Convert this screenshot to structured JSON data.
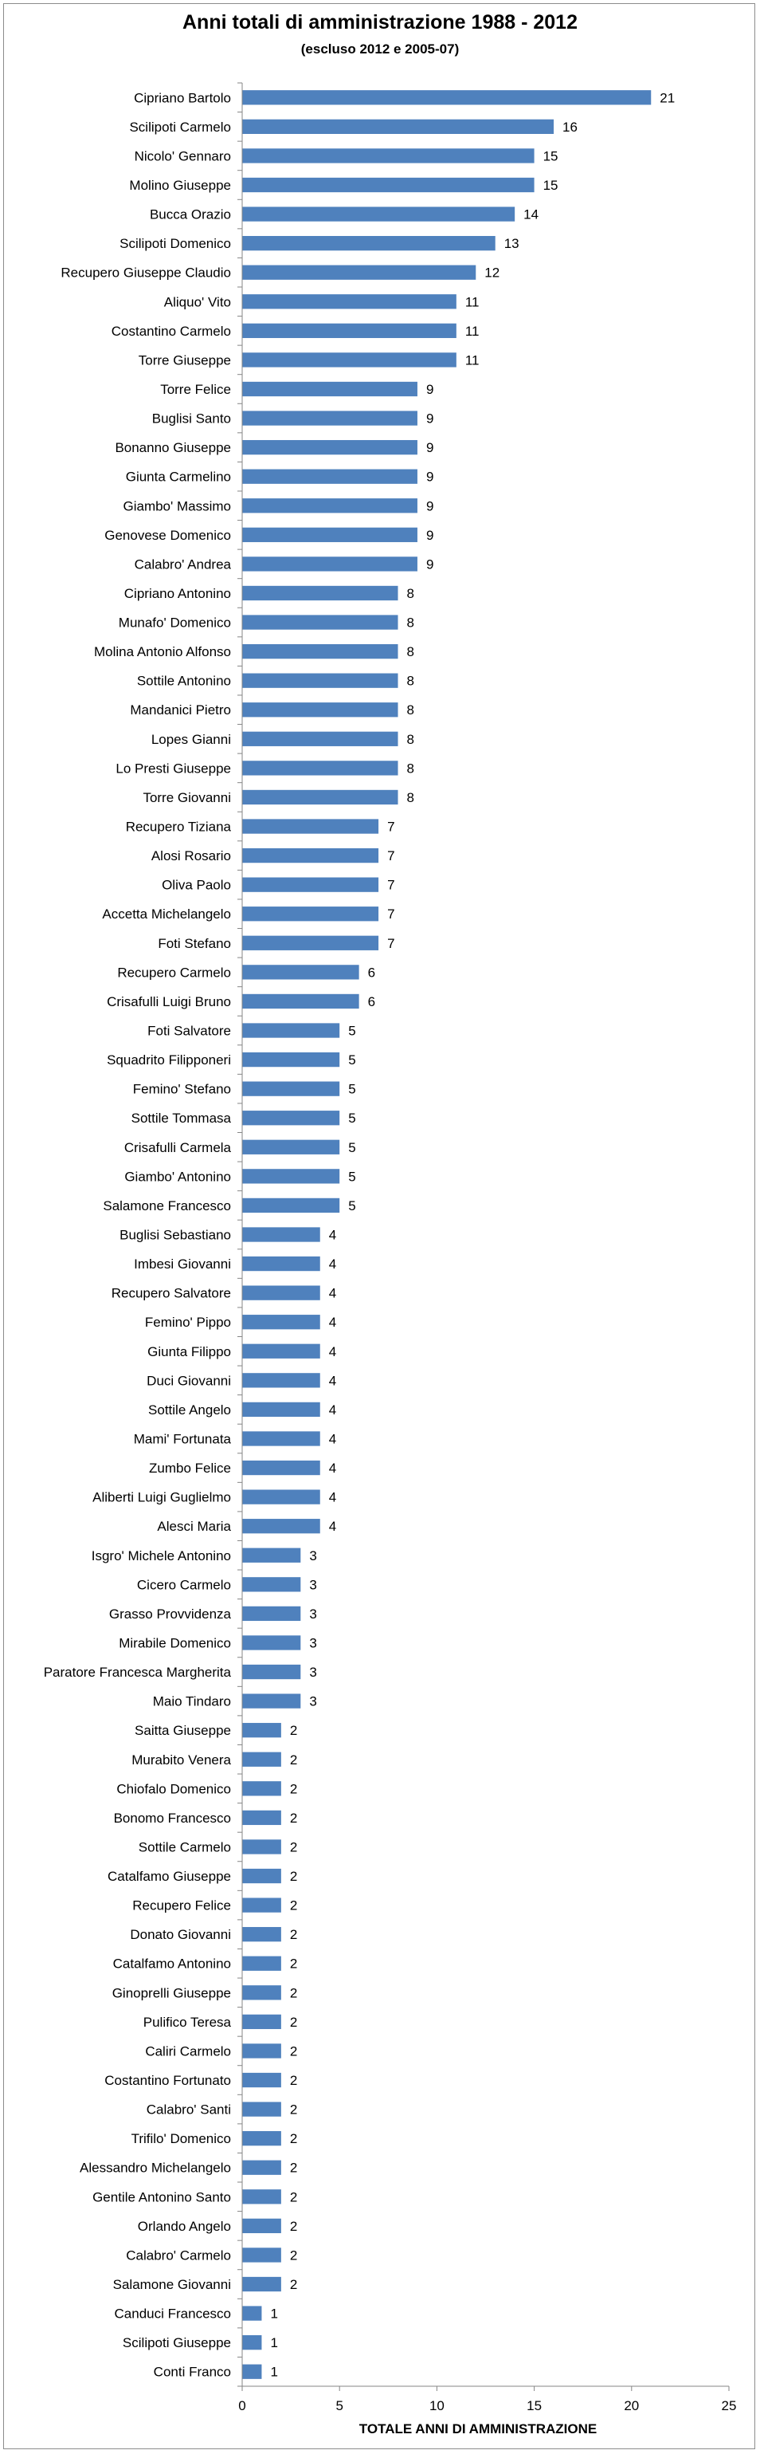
{
  "chart_data": {
    "type": "bar",
    "orientation": "horizontal",
    "title": "Anni totali di amministrazione 1988 - 2012",
    "subtitle": "(escluso 2012 e 2005-07)",
    "xlabel": "TOTALE ANNI DI AMMINISTRAZIONE",
    "ylabel": "",
    "xlim": [
      0,
      25
    ],
    "xticks": [
      0,
      5,
      10,
      15,
      20,
      25
    ],
    "grid": false,
    "legend": "none",
    "bar_color": "#4f81bd",
    "show_data_labels": true,
    "categories": [
      "Cipriano Bartolo",
      "Scilipoti Carmelo",
      "Nicolo' Gennaro",
      "Molino Giuseppe",
      "Bucca Orazio",
      "Scilipoti Domenico",
      "Recupero Giuseppe Claudio",
      "Aliquo' Vito",
      "Costantino Carmelo",
      "Torre Giuseppe",
      "Torre Felice",
      "Buglisi Santo",
      "Bonanno Giuseppe",
      "Giunta Carmelino",
      "Giambo' Massimo",
      "Genovese Domenico",
      "Calabro' Andrea",
      "Cipriano Antonino",
      "Munafo' Domenico",
      "Molina Antonio Alfonso",
      "Sottile Antonino",
      "Mandanici Pietro",
      "Lopes Gianni",
      "Lo Presti Giuseppe",
      "Torre Giovanni",
      "Recupero Tiziana",
      "Alosi Rosario",
      "Oliva Paolo",
      "Accetta Michelangelo",
      "Foti Stefano",
      "Recupero Carmelo",
      "Crisafulli Luigi Bruno",
      "Foti Salvatore",
      "Squadrito Filipponeri",
      "Femino' Stefano",
      "Sottile Tommasa",
      "Crisafulli Carmela",
      "Giambo' Antonino",
      "Salamone Francesco",
      "Buglisi Sebastiano",
      "Imbesi Giovanni",
      "Recupero Salvatore",
      "Femino' Pippo",
      "Giunta Filippo",
      "Duci Giovanni",
      "Sottile Angelo",
      "Mami' Fortunata",
      "Zumbo Felice",
      "Aliberti Luigi Guglielmo",
      "Alesci Maria",
      "Isgro' Michele Antonino",
      "Cicero Carmelo",
      "Grasso Provvidenza",
      "Mirabile Domenico",
      "Paratore Francesca Margherita",
      "Maio Tindaro",
      "Saitta  Giuseppe",
      "Murabito Venera",
      "Chiofalo Domenico",
      "Bonomo Francesco",
      "Sottile Carmelo",
      "Catalfamo Giuseppe",
      "Recupero Felice",
      "Donato Giovanni",
      "Catalfamo Antonino",
      "Ginoprelli Giuseppe",
      "Pulifico Teresa",
      "Caliri Carmelo",
      "Costantino Fortunato",
      "Calabro' Santi",
      "Trifilo' Domenico",
      "Alessandro Michelangelo",
      "Gentile Antonino Santo",
      "Orlando Angelo",
      "Calabro' Carmelo",
      "Salamone Giovanni",
      "Canduci Francesco",
      "Scilipoti Giuseppe",
      "Conti Franco"
    ],
    "values": [
      21,
      16,
      15,
      15,
      14,
      13,
      12,
      11,
      11,
      11,
      9,
      9,
      9,
      9,
      9,
      9,
      9,
      8,
      8,
      8,
      8,
      8,
      8,
      8,
      8,
      7,
      7,
      7,
      7,
      7,
      6,
      6,
      5,
      5,
      5,
      5,
      5,
      5,
      5,
      4,
      4,
      4,
      4,
      4,
      4,
      4,
      4,
      4,
      4,
      4,
      3,
      3,
      3,
      3,
      3,
      3,
      2,
      2,
      2,
      2,
      2,
      2,
      2,
      2,
      2,
      2,
      2,
      2,
      2,
      2,
      2,
      2,
      2,
      2,
      2,
      2,
      1,
      1,
      1
    ]
  }
}
